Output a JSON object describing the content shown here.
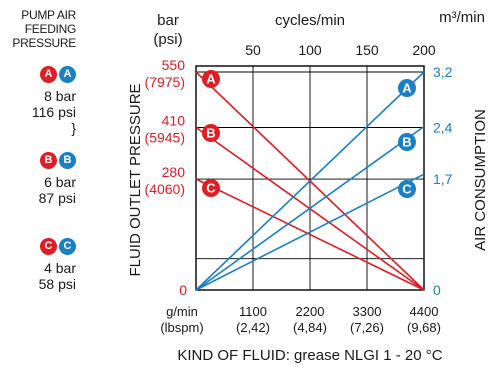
{
  "legend": {
    "pump_air_title": [
      "PUMP AIR",
      "FEEDING",
      "PRESSURE"
    ],
    "groups": [
      {
        "letter": "A",
        "bar": "8 bar",
        "psi": "116 psi"
      },
      {
        "letter": "B",
        "bar": "6 bar",
        "psi": "87 psi"
      },
      {
        "letter": "C",
        "bar": "4 bar",
        "psi": "58 psi"
      }
    ]
  },
  "colors": {
    "pressure": "#e31b23",
    "air": "#1a7fc4",
    "grid": "#000000",
    "text": "#1a1a1a"
  },
  "chart_data": {
    "type": "line",
    "title": "",
    "left_axis": {
      "label": "FLUID OUTLET PRESSURE",
      "unit": [
        "bar",
        "(psi)"
      ],
      "ticks": [
        {
          "value": 0,
          "bar": "0",
          "psi": ""
        },
        {
          "value": 280,
          "bar": "280",
          "psi": "(4060)"
        },
        {
          "value": 410,
          "bar": "410",
          "psi": "(5945)"
        },
        {
          "value": 550,
          "bar": "550",
          "psi": "(7975)"
        }
      ],
      "range": [
        0,
        550
      ]
    },
    "right_axis": {
      "label": "AIR CONSUMPTION",
      "unit": "m³/min",
      "ticks": [
        "0",
        "1,7",
        "2,4",
        "3,2"
      ],
      "values": [
        0,
        1.7,
        2.4,
        3.2
      ]
    },
    "top_axis": {
      "label": "cycles/min",
      "ticks": [
        "50",
        "100",
        "150",
        "200"
      ],
      "range": [
        0,
        200
      ]
    },
    "bottom_axis": {
      "unit": [
        "g/min",
        "(lbspm)"
      ],
      "ticks": [
        {
          "gmin": "1100",
          "lbspm": "(2,42)"
        },
        {
          "gmin": "2200",
          "lbspm": "(4,84)"
        },
        {
          "gmin": "3300",
          "lbspm": "(7,26)"
        },
        {
          "gmin": "4400",
          "lbspm": "(9,68)"
        }
      ],
      "values": [
        1100,
        2200,
        3300,
        4400
      ],
      "range": [
        0,
        4400
      ]
    },
    "fluid_label": "KIND OF FLUID: grease NLGI 1 - 20 °C",
    "grid": true,
    "series": [
      {
        "name": "A",
        "kind": "fluid outlet pressure",
        "x": [
          0,
          200
        ],
        "y": [
          550,
          0
        ]
      },
      {
        "name": "B",
        "kind": "fluid outlet pressure",
        "x": [
          0,
          200
        ],
        "y": [
          410,
          0
        ]
      },
      {
        "name": "C",
        "kind": "fluid outlet pressure",
        "x": [
          0,
          200
        ],
        "y": [
          280,
          0
        ]
      },
      {
        "name": "A",
        "kind": "air consumption",
        "x": [
          0,
          200
        ],
        "y": [
          0,
          3.2
        ]
      },
      {
        "name": "B",
        "kind": "air consumption",
        "x": [
          0,
          200
        ],
        "y": [
          0,
          2.4
        ]
      },
      {
        "name": "C",
        "kind": "air consumption",
        "x": [
          0,
          200
        ],
        "y": [
          0,
          1.7
        ]
      }
    ]
  }
}
